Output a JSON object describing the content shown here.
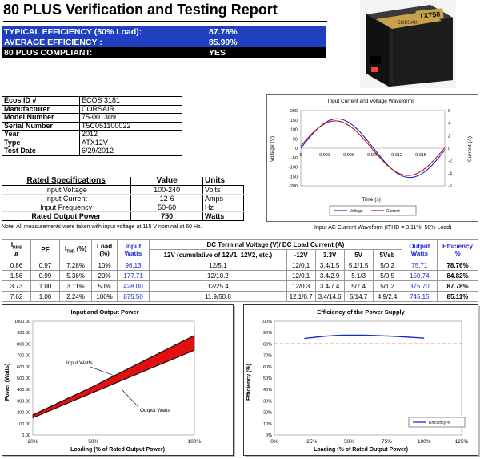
{
  "report": {
    "title": "80 PLUS Verification and Testing Report"
  },
  "summary": [
    {
      "label": "TYPICAL EFFICIENCY (50% Load):",
      "value": "87.78%"
    },
    {
      "label": "AVERAGE EFFICIENCY :",
      "value": "85.90%"
    },
    {
      "label": "80 PLUS COMPLIANT:",
      "value": "YES"
    }
  ],
  "product": {
    "brand": "CORSAIR",
    "model_badge": "TX750"
  },
  "info": [
    {
      "key": "Ecos ID #",
      "value": "ECOS 3181"
    },
    {
      "key": "Manufacturer",
      "value": "CORSAIR"
    },
    {
      "key": "Model Number",
      "value": "75-001309"
    },
    {
      "key": "Serial Number",
      "value": "T5C051100022"
    },
    {
      "key": "Year",
      "value": "2012"
    },
    {
      "key": "Type",
      "value": "ATX12V"
    },
    {
      "key": "Test Date",
      "value": "6/29/2012"
    }
  ],
  "rated": {
    "header": {
      "label": "Rated Specifications",
      "value": "Value",
      "unit": "Units"
    },
    "rows": [
      {
        "label": "Input Voltage",
        "value": "100-240",
        "unit": "Volts"
      },
      {
        "label": "Input Current",
        "value": "12-6",
        "unit": "Amps"
      },
      {
        "label": "Input Frequency",
        "value": "50-60",
        "unit": "Hz"
      },
      {
        "label": "Rated Output Power",
        "value": "750",
        "unit": "Watts"
      }
    ]
  },
  "notes": {
    "measurement": "Note: All measurements were taken with input voltage at 115 V nominal at 60 Hz.",
    "waveform": "Input AC Current Waveform (ITHD = 3.11%, 50% Load)"
  },
  "waveform_chart": {
    "title": "Input Current and Voltage Waveforms",
    "xlabel": "Time (s)",
    "ylabel_left": "Voltage (V)",
    "ylabel_right": "Current (A)",
    "x_ticks": [
      "0",
      "0.003",
      "0.006",
      "0.009",
      "0.012",
      "0.015"
    ],
    "yl_ticks": [
      "200",
      "150",
      "100",
      "50",
      "0",
      "-50",
      "-100",
      "-150",
      "-200"
    ],
    "yr_ticks": [
      "6",
      "4",
      "2",
      "0",
      "-2",
      "-4",
      "-6"
    ],
    "legend": [
      "Voltage",
      "Current"
    ],
    "colors": {
      "voltage": "#1a2ac8",
      "current": "#c01010"
    }
  },
  "data_table": {
    "header1": {
      "irms": "I",
      "irms_sub": "RMS",
      "irms_unit": "A",
      "pf": "PF",
      "ithd": "I",
      "ithd_sub": "THD",
      "ithd_unit": "(%)",
      "load": "Load",
      "load_unit": "(%)",
      "input": "Input",
      "input_unit": "Watts",
      "dc": "DC Terminal Voltage (V)/ DC Load Current (A)",
      "output": "Output",
      "output_unit": "Watts",
      "eff": "Efficiency",
      "eff_unit": "%"
    },
    "dc_cols": [
      "12V (cumulative of 12V1, 12V2, etc.)",
      "-12V",
      "3.3V",
      "5V",
      "5Vsb"
    ],
    "rows": [
      [
        "0.86",
        "0.97",
        "7.28%",
        "10%",
        "96.13",
        "12/5.1",
        "12/0.1",
        "3.4/1.5",
        "5.1/1.5",
        "5/0.2",
        "75.71",
        "78.76%"
      ],
      [
        "1.56",
        "0.99",
        "5.36%",
        "20%",
        "177.71",
        "12/10.2",
        "12/0.1",
        "3.4/2.9",
        "5.1/3",
        "5/0.5",
        "150.74",
        "84.82%"
      ],
      [
        "3.73",
        "1.00",
        "3.11%",
        "50%",
        "428.00",
        "12/25.4",
        "12/0.3",
        "3.4/7.4",
        "5/7.4",
        "5/1.2",
        "375.70",
        "87.78%"
      ],
      [
        "7.62",
        "1.00",
        "2.24%",
        "100%",
        "875.50",
        "11.9/50.8",
        "12.1/0.7",
        "3.4/14.6",
        "5/14.7",
        "4.9/2.4",
        "745.15",
        "85.11%"
      ]
    ]
  },
  "chart_data": [
    {
      "type": "area",
      "title": "Input and Output Power",
      "xlabel": "Loading (% of Rated Output Power)",
      "ylabel": "Power (Watts)",
      "x_ticks": [
        "20%",
        "50%",
        "100%"
      ],
      "y_ticks": [
        "0.00",
        "100.00",
        "200.00",
        "300.00",
        "400.00",
        "500.00",
        "600.00",
        "700.00",
        "800.00",
        "900.00",
        "1000.00"
      ],
      "ylim": [
        0,
        1000
      ],
      "x": [
        20,
        50,
        100
      ],
      "series": [
        {
          "name": "Input Watts",
          "values": [
            177.71,
            428.0,
            875.5
          ]
        },
        {
          "name": "Output Watts",
          "values": [
            150.74,
            375.7,
            745.15
          ]
        }
      ],
      "fill_color": "#e01010"
    },
    {
      "type": "line",
      "title": "Efficiency of the Power Supply",
      "xlabel": "Loading (% of Rated Output Power)",
      "ylabel": "Efficiency (%)",
      "x_ticks": [
        "0%",
        "25%",
        "50%",
        "75%",
        "100%",
        "125%"
      ],
      "y_ticks": [
        "0%",
        "10%",
        "20%",
        "30%",
        "40%",
        "50%",
        "60%",
        "70%",
        "80%",
        "90%",
        "100%"
      ],
      "xlim": [
        0,
        125
      ],
      "ylim": [
        0,
        100
      ],
      "x": [
        20,
        50,
        100
      ],
      "series": [
        {
          "name": "Efficiency %",
          "values": [
            84.82,
            87.78,
            85.11
          ]
        }
      ],
      "threshold": 80,
      "colors": {
        "line": "#1a2ac8",
        "threshold": "#e01010"
      }
    }
  ]
}
